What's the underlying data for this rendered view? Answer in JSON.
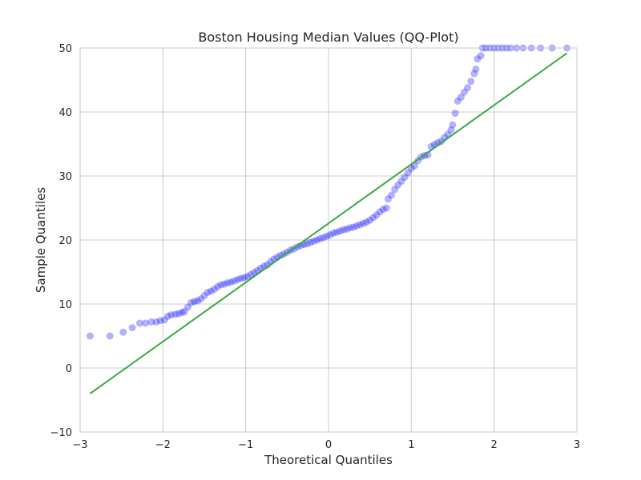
{
  "chart_data": {
    "type": "scatter",
    "title": "Boston Housing Median Values (QQ-Plot)",
    "xlabel": "Theoretical Quantiles",
    "ylabel": "Sample Quantiles",
    "xlim": [
      -3,
      3
    ],
    "ylim": [
      -10,
      50
    ],
    "x_ticks": [
      -3,
      -2,
      -1,
      0,
      1,
      2,
      3
    ],
    "x_tick_labels": [
      "−3",
      "−2",
      "−1",
      "0",
      "1",
      "2",
      "3"
    ],
    "y_ticks": [
      -10,
      0,
      10,
      20,
      30,
      40,
      50
    ],
    "y_tick_labels": [
      "−10",
      "0",
      "10",
      "20",
      "30",
      "40",
      "50"
    ],
    "grid": true,
    "series": [
      {
        "kind": "points",
        "color": "#0000ff",
        "opacity": 0.3,
        "points": [
          [
            -2.88,
            5.0
          ],
          [
            -2.64,
            5.0
          ],
          [
            -2.48,
            5.6
          ],
          [
            -2.37,
            6.3
          ],
          [
            -2.28,
            7.0
          ],
          [
            -2.21,
            7.0
          ],
          [
            -2.14,
            7.2
          ],
          [
            -2.08,
            7.2
          ],
          [
            -2.03,
            7.4
          ],
          [
            -1.98,
            7.5
          ],
          [
            -1.94,
            8.1
          ],
          [
            -1.9,
            8.3
          ],
          [
            -1.85,
            8.4
          ],
          [
            -1.81,
            8.5
          ],
          [
            -1.77,
            8.7
          ],
          [
            -1.74,
            8.8
          ],
          [
            -1.7,
            9.5
          ],
          [
            -1.66,
            10.2
          ],
          [
            -1.62,
            10.4
          ],
          [
            -1.58,
            10.5
          ],
          [
            -1.54,
            10.8
          ],
          [
            -1.5,
            11.3
          ],
          [
            -1.46,
            11.8
          ],
          [
            -1.42,
            12.0
          ],
          [
            -1.38,
            12.3
          ],
          [
            -1.34,
            12.7
          ],
          [
            -1.3,
            13.0
          ],
          [
            -1.26,
            13.1
          ],
          [
            -1.22,
            13.3
          ],
          [
            -1.18,
            13.4
          ],
          [
            -1.14,
            13.6
          ],
          [
            -1.1,
            13.8
          ],
          [
            -1.06,
            14.0
          ],
          [
            -1.02,
            14.1
          ],
          [
            -0.98,
            14.3
          ],
          [
            -0.94,
            14.6
          ],
          [
            -0.9,
            14.9
          ],
          [
            -0.86,
            15.2
          ],
          [
            -0.82,
            15.6
          ],
          [
            -0.78,
            15.9
          ],
          [
            -0.74,
            16.1
          ],
          [
            -0.7,
            16.6
          ],
          [
            -0.66,
            17.0
          ],
          [
            -0.62,
            17.3
          ],
          [
            -0.58,
            17.6
          ],
          [
            -0.54,
            17.8
          ],
          [
            -0.5,
            18.1
          ],
          [
            -0.46,
            18.4
          ],
          [
            -0.42,
            18.6
          ],
          [
            -0.38,
            18.9
          ],
          [
            -0.34,
            19.1
          ],
          [
            -0.3,
            19.3
          ],
          [
            -0.26,
            19.4
          ],
          [
            -0.22,
            19.6
          ],
          [
            -0.18,
            19.8
          ],
          [
            -0.14,
            20.0
          ],
          [
            -0.1,
            20.2
          ],
          [
            -0.06,
            20.4
          ],
          [
            -0.02,
            20.6
          ],
          [
            0.02,
            20.8
          ],
          [
            0.06,
            21.1
          ],
          [
            0.1,
            21.2
          ],
          [
            0.14,
            21.4
          ],
          [
            0.18,
            21.6
          ],
          [
            0.22,
            21.7
          ],
          [
            0.26,
            21.9
          ],
          [
            0.3,
            22.0
          ],
          [
            0.34,
            22.2
          ],
          [
            0.38,
            22.4
          ],
          [
            0.42,
            22.6
          ],
          [
            0.46,
            22.8
          ],
          [
            0.5,
            23.1
          ],
          [
            0.54,
            23.5
          ],
          [
            0.58,
            23.9
          ],
          [
            0.62,
            24.4
          ],
          [
            0.66,
            24.8
          ],
          [
            0.7,
            25.0
          ],
          [
            0.72,
            26.4
          ],
          [
            0.76,
            27.0
          ],
          [
            0.8,
            27.9
          ],
          [
            0.84,
            28.6
          ],
          [
            0.88,
            29.2
          ],
          [
            0.92,
            29.8
          ],
          [
            0.96,
            30.5
          ],
          [
            1.0,
            31.2
          ],
          [
            1.04,
            31.6
          ],
          [
            1.08,
            32.4
          ],
          [
            1.12,
            33.0
          ],
          [
            1.16,
            33.2
          ],
          [
            1.2,
            33.3
          ],
          [
            1.24,
            34.6
          ],
          [
            1.28,
            34.9
          ],
          [
            1.32,
            35.2
          ],
          [
            1.36,
            35.4
          ],
          [
            1.4,
            36.0
          ],
          [
            1.44,
            36.5
          ],
          [
            1.48,
            37.2
          ],
          [
            1.5,
            38.0
          ],
          [
            1.53,
            39.8
          ],
          [
            1.56,
            41.7
          ],
          [
            1.6,
            42.3
          ],
          [
            1.64,
            43.1
          ],
          [
            1.68,
            43.8
          ],
          [
            1.72,
            44.8
          ],
          [
            1.76,
            46.0
          ],
          [
            1.78,
            46.7
          ],
          [
            1.8,
            48.3
          ],
          [
            1.84,
            48.8
          ],
          [
            1.86,
            50.0
          ],
          [
            1.9,
            50.0
          ],
          [
            1.95,
            50.0
          ],
          [
            2.0,
            50.0
          ],
          [
            2.05,
            50.0
          ],
          [
            2.1,
            50.0
          ],
          [
            2.15,
            50.0
          ],
          [
            2.2,
            50.0
          ],
          [
            2.27,
            50.0
          ],
          [
            2.35,
            50.0
          ],
          [
            2.45,
            50.0
          ],
          [
            2.56,
            50.0
          ],
          [
            2.7,
            50.0
          ],
          [
            2.88,
            50.0
          ]
        ]
      },
      {
        "kind": "line",
        "color": "#3aa844",
        "points": [
          [
            -2.88,
            -4.0
          ],
          [
            2.88,
            49.2
          ]
        ]
      }
    ]
  }
}
